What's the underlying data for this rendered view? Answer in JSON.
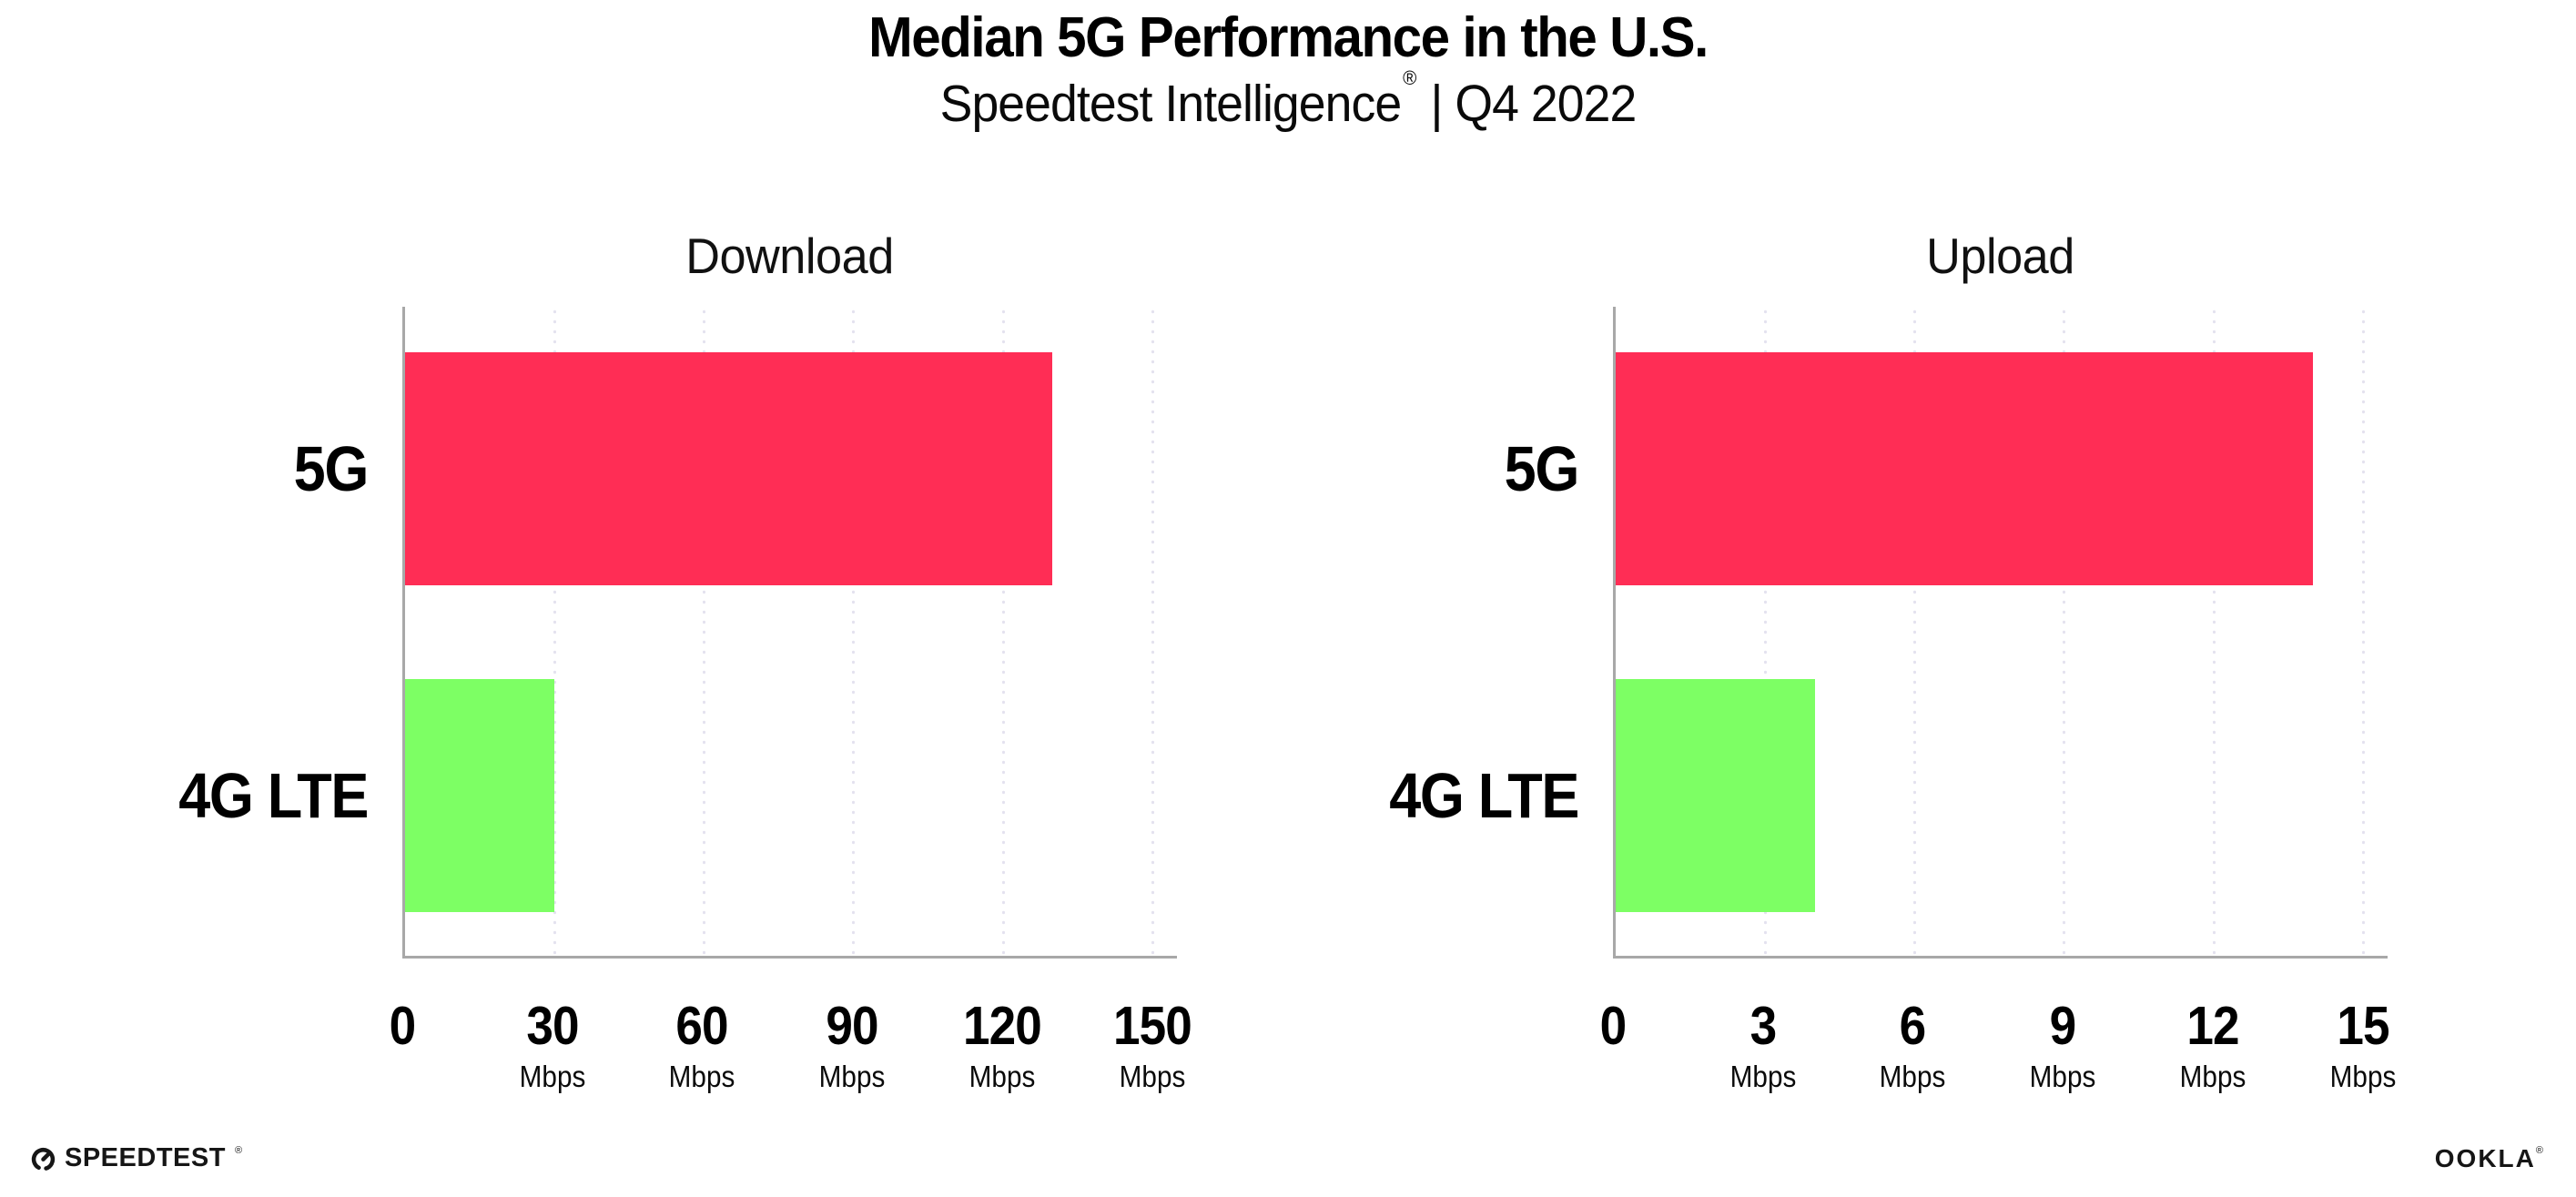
{
  "header": {
    "title": "Median 5G Performance in the U.S.",
    "subtitle_brand": "Speedtest Intelligence",
    "subtitle_reg": "®",
    "subtitle_sep": "|",
    "subtitle_period": "Q4 2022"
  },
  "colors": {
    "bar_5g": "#FF2D55",
    "bar_4g_lte": "#7DFF64",
    "gridline": "#E4E2EF",
    "axis": "#A8A8A8",
    "text": "#000000",
    "background": "#FFFFFF"
  },
  "chart_data": [
    {
      "type": "bar",
      "orientation": "horizontal",
      "title": "Download",
      "categories": [
        "5G",
        "4G LTE"
      ],
      "values": [
        130,
        30
      ],
      "unit": "Mbps",
      "xticks": [
        0,
        30,
        60,
        90,
        120,
        150
      ],
      "xlim": [
        0,
        155
      ],
      "grid": "vertical-dotted",
      "legend": "none",
      "bar_colors": [
        "#FF2D55",
        "#7DFF64"
      ]
    },
    {
      "type": "bar",
      "orientation": "horizontal",
      "title": "Upload",
      "categories": [
        "5G",
        "4G LTE"
      ],
      "values": [
        14,
        4
      ],
      "unit": "Mbps",
      "xticks": [
        0,
        3,
        6,
        9,
        12,
        15
      ],
      "xlim": [
        0,
        15.5
      ],
      "grid": "vertical-dotted",
      "legend": "none",
      "bar_colors": [
        "#FF2D55",
        "#7DFF64"
      ]
    }
  ],
  "footer": {
    "speedtest_label": "SPEEDTEST",
    "speedtest_reg": "®",
    "ookla_label": "OOKLA",
    "ookla_reg": "®"
  }
}
